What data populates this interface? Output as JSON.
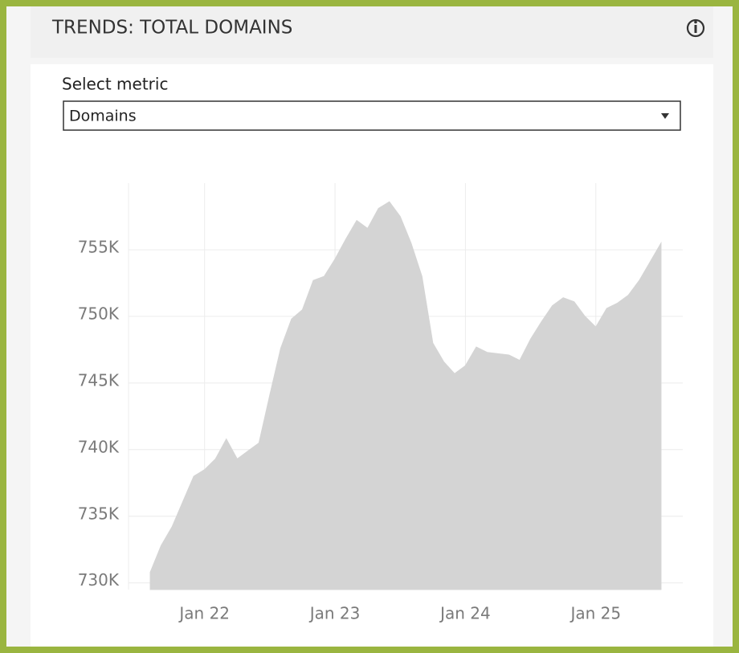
{
  "header": {
    "title": "TRENDS: TOTAL DOMAINS"
  },
  "control": {
    "label": "Select metric",
    "value": "Domains"
  },
  "chart_data": {
    "type": "area",
    "x": [
      "2021-08",
      "2021-09",
      "2021-10",
      "2021-11",
      "2021-12",
      "2022-01",
      "2022-02",
      "2022-03",
      "2022-04",
      "2022-05",
      "2022-06",
      "2022-07",
      "2022-08",
      "2022-09",
      "2022-10",
      "2022-11",
      "2022-12",
      "2023-01",
      "2023-02",
      "2023-03",
      "2023-04",
      "2023-05",
      "2023-06",
      "2023-07",
      "2023-08",
      "2023-09",
      "2023-10",
      "2023-11",
      "2023-12",
      "2024-01",
      "2024-02",
      "2024-03",
      "2024-04",
      "2024-05",
      "2024-06",
      "2024-07",
      "2024-08",
      "2024-09",
      "2024-10",
      "2024-11",
      "2024-12",
      "2025-01",
      "2025-02",
      "2025-03",
      "2025-04",
      "2025-05",
      "2025-06",
      "2025-07"
    ],
    "values": [
      730.8,
      732.8,
      734.2,
      736.1,
      738.0,
      738.5,
      739.3,
      740.8,
      739.3,
      739.9,
      740.5,
      744.1,
      747.6,
      749.8,
      750.5,
      752.7,
      753.0,
      754.3,
      755.8,
      757.2,
      756.6,
      758.1,
      758.6,
      757.5,
      755.5,
      753.0,
      748.0,
      746.6,
      745.7,
      746.3,
      747.7,
      747.3,
      747.2,
      747.1,
      746.7,
      748.3,
      749.6,
      750.8,
      751.4,
      751.1,
      750.0,
      749.2,
      750.6,
      751.0,
      751.6,
      752.7,
      754.1,
      755.5
    ],
    "color": "#d4d4d4",
    "xlim": [
      "2021-06",
      "2025-09"
    ],
    "xticks": [
      {
        "value": "2022-01",
        "label": "Jan 22"
      },
      {
        "value": "2023-01",
        "label": "Jan 23"
      },
      {
        "value": "2024-01",
        "label": "Jan 24"
      },
      {
        "value": "2025-01",
        "label": "Jan 25"
      }
    ],
    "ylim": [
      729.5,
      760
    ],
    "yticks": [
      {
        "value": 730,
        "label": "730K"
      },
      {
        "value": 735,
        "label": "735K"
      },
      {
        "value": 740,
        "label": "740K"
      },
      {
        "value": 745,
        "label": "745K"
      },
      {
        "value": 750,
        "label": "750K"
      },
      {
        "value": 755,
        "label": "755K"
      }
    ],
    "grid": true
  }
}
